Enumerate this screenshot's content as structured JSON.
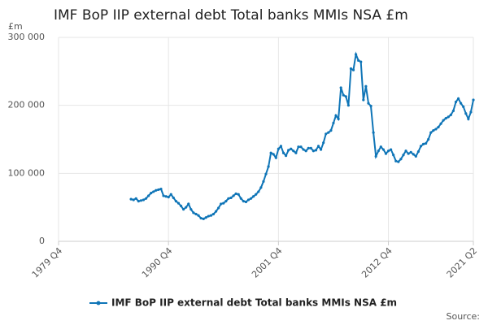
{
  "chart_data": {
    "type": "line",
    "title": "IMF BoP IIP external debt Total banks MMIs NSA £m",
    "y_label": "£m",
    "source": "Source:",
    "categories": [
      "1979 Q4",
      null,
      null,
      null,
      null,
      null,
      null,
      null,
      null,
      null,
      null,
      null,
      null,
      null,
      null,
      null,
      null,
      null,
      null,
      null,
      null,
      null,
      null,
      null,
      null,
      null,
      null,
      null,
      null,
      null,
      null,
      null,
      null,
      null,
      null,
      null,
      null,
      null,
      null,
      null,
      null,
      null,
      null,
      null,
      "1990 Q4",
      null,
      null,
      null,
      null,
      null,
      null,
      null,
      null,
      null,
      null,
      null,
      null,
      null,
      null,
      null,
      null,
      null,
      null,
      null,
      null,
      null,
      null,
      null,
      null,
      null,
      null,
      null,
      null,
      null,
      null,
      null,
      null,
      null,
      null,
      null,
      null,
      null,
      null,
      null,
      null,
      null,
      null,
      null,
      "2001 Q4",
      null,
      null,
      null,
      null,
      null,
      null,
      null,
      null,
      null,
      null,
      null,
      null,
      null,
      null,
      null,
      null,
      null,
      null,
      null,
      null,
      null,
      null,
      null,
      null,
      null,
      null,
      null,
      null,
      null,
      null,
      null,
      null,
      null,
      null,
      null,
      null,
      null,
      null,
      null,
      null,
      null,
      null,
      null,
      "2012 Q4",
      null,
      null,
      null,
      null,
      null,
      null,
      null,
      null,
      null,
      null,
      null,
      null,
      null,
      null,
      null,
      null,
      null,
      null,
      null,
      null,
      null,
      null,
      null,
      null,
      null,
      null,
      null,
      null,
      null,
      null,
      null,
      null,
      null,
      "2021 Q2"
    ],
    "series": [
      {
        "name": "IMF BoP IIP external debt Total banks MMIs NSA £m",
        "color": "#0f75b7",
        "values": [
          null,
          null,
          null,
          null,
          null,
          null,
          null,
          null,
          null,
          null,
          null,
          null,
          null,
          null,
          null,
          null,
          null,
          null,
          null,
          null,
          null,
          null,
          null,
          null,
          null,
          null,
          null,
          null,
          null,
          62000,
          61000,
          63000,
          59000,
          60000,
          61000,
          63000,
          67000,
          71000,
          73000,
          75000,
          76000,
          77000,
          67000,
          66000,
          65000,
          69000,
          64000,
          59000,
          56000,
          52000,
          47000,
          50000,
          55000,
          47000,
          42000,
          40000,
          38000,
          34000,
          33000,
          35000,
          37000,
          38000,
          40000,
          44000,
          49000,
          55000,
          56000,
          59000,
          63000,
          64000,
          67000,
          70000,
          69000,
          63000,
          59000,
          58000,
          61000,
          63000,
          66000,
          69000,
          73000,
          79000,
          88000,
          99000,
          110000,
          130000,
          128000,
          123000,
          136000,
          140000,
          130000,
          126000,
          134000,
          136000,
          133000,
          130000,
          139000,
          139000,
          135000,
          133000,
          137000,
          137000,
          133000,
          134000,
          140000,
          135000,
          145000,
          158000,
          160000,
          163000,
          174000,
          185000,
          180000,
          226000,
          215000,
          213000,
          200000,
          254000,
          252000,
          275000,
          266000,
          264000,
          208000,
          228000,
          203000,
          199000,
          160000,
          125000,
          133000,
          139000,
          135000,
          129000,
          133000,
          135000,
          127000,
          118000,
          117000,
          121000,
          127000,
          133000,
          129000,
          131000,
          128000,
          125000,
          132000,
          140000,
          143000,
          144000,
          150000,
          160000,
          163000,
          165000,
          168000,
          173000,
          178000,
          181000,
          183000,
          186000,
          192000,
          205000,
          210000,
          203000,
          198000,
          188000,
          180000,
          190000,
          208000
        ]
      }
    ],
    "ylim": [
      0,
      300000
    ],
    "yticks": [
      0,
      {
        "value": 100000,
        "label": "100 000"
      },
      {
        "value": 200000,
        "label": "200 000"
      },
      {
        "value": 300000,
        "label": "300 000"
      }
    ],
    "grid": true,
    "markers": true
  }
}
